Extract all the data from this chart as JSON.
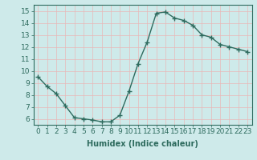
{
  "x": [
    0,
    1,
    2,
    3,
    4,
    5,
    6,
    7,
    8,
    9,
    10,
    11,
    12,
    13,
    14,
    15,
    16,
    17,
    18,
    19,
    20,
    21,
    22,
    23
  ],
  "y": [
    9.5,
    8.7,
    8.1,
    7.1,
    6.1,
    6.0,
    5.9,
    5.75,
    5.75,
    6.3,
    8.3,
    10.6,
    12.4,
    14.8,
    14.9,
    14.4,
    14.2,
    13.8,
    13.0,
    12.8,
    12.2,
    12.0,
    11.8,
    11.6
  ],
  "line_color": "#2e6b5e",
  "marker": "+",
  "markersize": 4,
  "linewidth": 1.0,
  "xlabel": "Humidex (Indice chaleur)",
  "xlabel_fontsize": 7,
  "ylabel": "",
  "xlim": [
    -0.5,
    23.5
  ],
  "ylim": [
    5.5,
    15.5
  ],
  "yticks": [
    6,
    7,
    8,
    9,
    10,
    11,
    12,
    13,
    14,
    15
  ],
  "xticks": [
    0,
    1,
    2,
    3,
    4,
    5,
    6,
    7,
    8,
    9,
    10,
    11,
    12,
    13,
    14,
    15,
    16,
    17,
    18,
    19,
    20,
    21,
    22,
    23
  ],
  "bg_color": "#ceeaea",
  "grid_color": "#b0d8d8",
  "tick_color": "#2e6b5e",
  "label_color": "#2e6b5e",
  "tick_fontsize": 6.5
}
